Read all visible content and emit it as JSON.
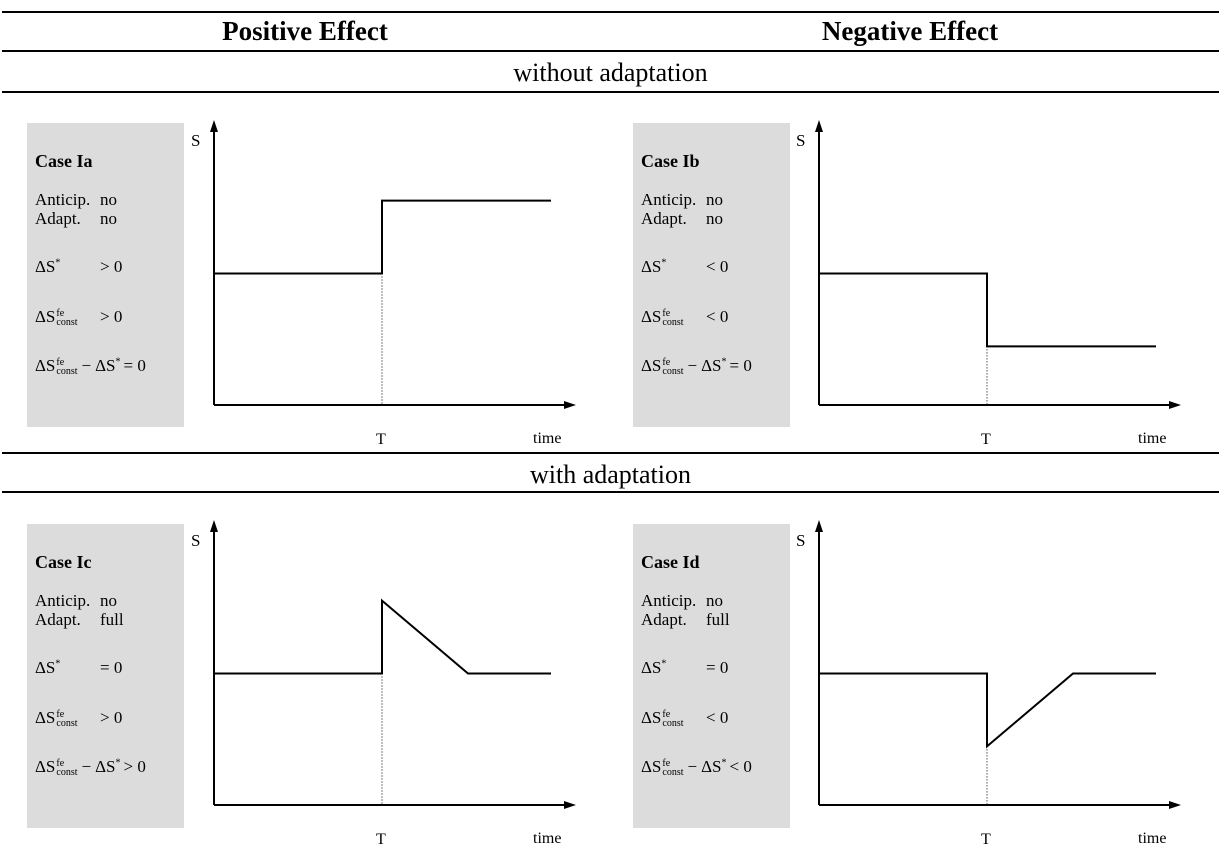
{
  "headers": {
    "positive": "Positive Effect",
    "negative": "Negative Effect"
  },
  "bands": {
    "top": "without adaptation",
    "bottom": "with adaptation"
  },
  "labels": {
    "delta": "ΔS",
    "star": "*",
    "fe": "fe",
    "const": "const",
    "minus": "−"
  },
  "cases": [
    {
      "title": "Case Ia",
      "anticip_label": "Anticip.",
      "anticip": "no",
      "adapt_label": "Adapt.",
      "adapt": "no",
      "dS_star": "> 0",
      "dS_const": "> 0",
      "diff": "= 0",
      "axis_y": "S",
      "axis_x": "time",
      "tick": "T",
      "chart_data": {
        "type": "line",
        "shape": "step-up",
        "before": 0.5,
        "after_peak": 0.8,
        "settles_to": 0.8
      }
    },
    {
      "title": "Case Ib",
      "anticip_label": "Anticip.",
      "anticip": "no",
      "adapt_label": "Adapt.",
      "adapt": "no",
      "dS_star": "< 0",
      "dS_const": "< 0",
      "diff": "= 0",
      "axis_y": "S",
      "axis_x": "time",
      "tick": "T",
      "chart_data": {
        "type": "line",
        "shape": "step-down",
        "before": 0.5,
        "after_peak": 0.2,
        "settles_to": 0.2
      }
    },
    {
      "title": "Case Ic",
      "anticip_label": "Anticip.",
      "anticip": "no",
      "adapt_label": "Adapt.",
      "adapt": "full",
      "dS_star": "= 0",
      "dS_const": "> 0",
      "diff": "> 0",
      "axis_y": "S",
      "axis_x": "time",
      "tick": "T",
      "chart_data": {
        "type": "line",
        "shape": "jump-up-then-return",
        "before": 0.5,
        "after_peak": 0.8,
        "settles_to": 0.5
      }
    },
    {
      "title": "Case Id",
      "anticip_label": "Anticip.",
      "anticip": "no",
      "adapt_label": "Adapt.",
      "adapt": "full",
      "dS_star": "= 0",
      "dS_const": "< 0",
      "diff": "< 0",
      "axis_y": "S",
      "axis_x": "time",
      "tick": "T",
      "chart_data": {
        "type": "line",
        "shape": "drop-then-return",
        "before": 0.5,
        "after_peak": 0.2,
        "settles_to": 0.5
      }
    }
  ]
}
